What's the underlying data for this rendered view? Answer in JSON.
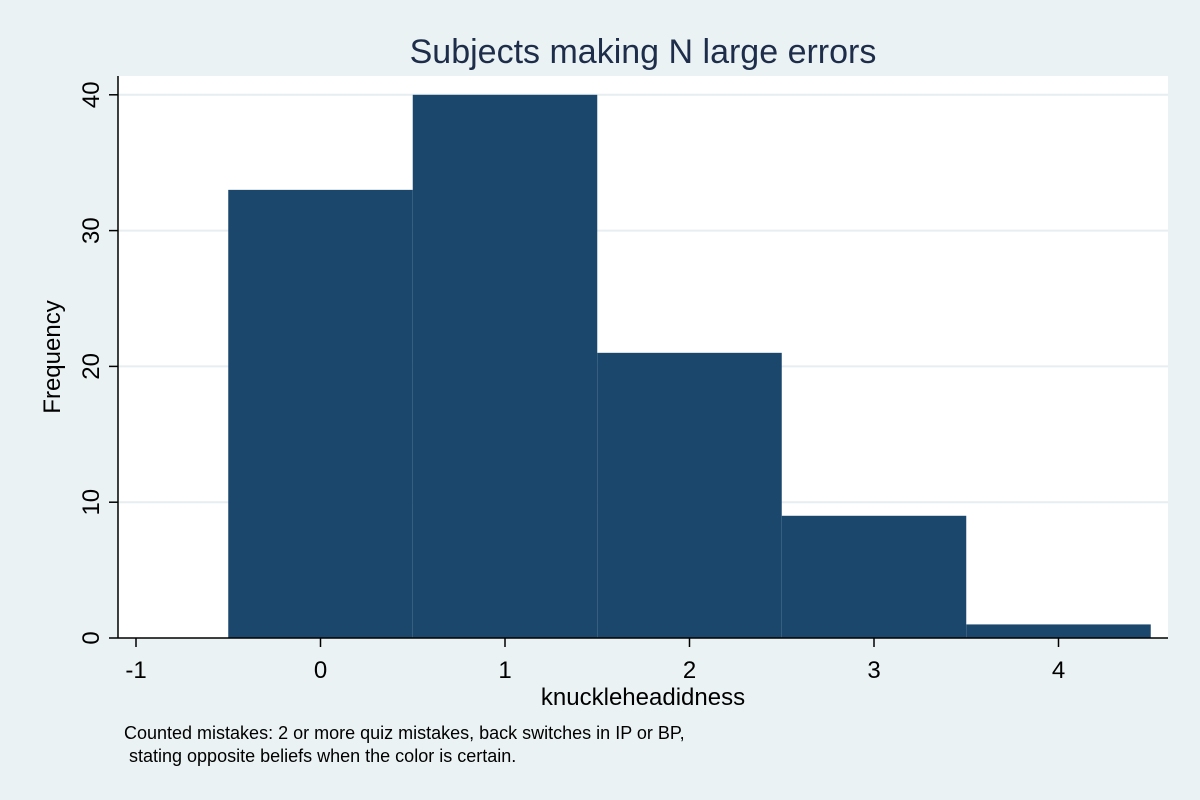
{
  "chart_data": {
    "type": "bar",
    "title": "Subjects making N large errors",
    "xlabel": "knuckleheadidness",
    "ylabel": "Frequency",
    "categories": [
      0,
      1,
      2,
      3,
      4
    ],
    "values": [
      33,
      40,
      21,
      9,
      1
    ],
    "bin_width": 1,
    "xlim": [
      -1.1,
      4.6
    ],
    "ylim": [
      0,
      41.2
    ],
    "xticks": [
      "-1",
      "0",
      "1",
      "2",
      "3",
      "4"
    ],
    "yticks": [
      "0",
      "10",
      "20",
      "30",
      "40"
    ],
    "grid": true,
    "legend": "none",
    "note": [
      "Counted mistakes: 2 or more quiz mistakes, back switches in IP or BP,",
      " stating opposite beliefs when the color is certain."
    ]
  },
  "colors": {
    "background": "#eaf2f3",
    "plot_area": "#ffffff",
    "bar": "#1c476d",
    "grid": "#e6eef0",
    "title": "#1e2d4a"
  }
}
